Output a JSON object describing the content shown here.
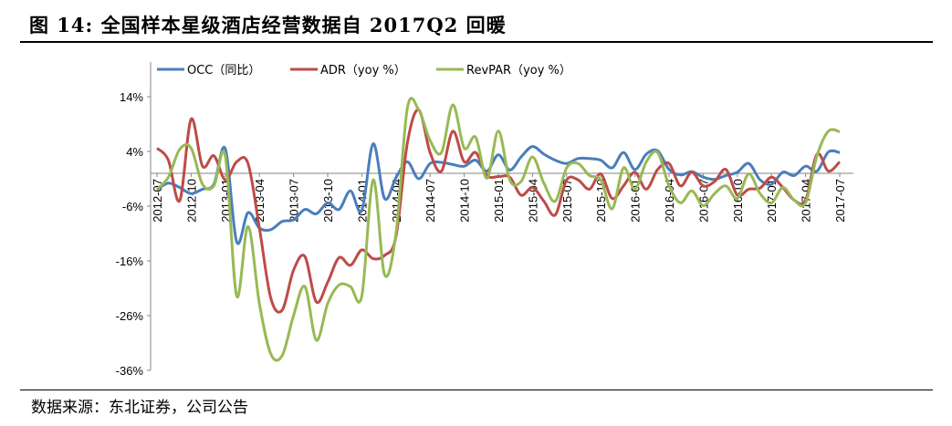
{
  "title": "图 14:  全国样本星级酒店经营数据自 2017Q2 回暖",
  "source": "数据来源：东北证券，公司公告",
  "chart_data": {
    "type": "line",
    "title": "",
    "xlabel": "",
    "ylabel": "",
    "ylim": [
      -36,
      20
    ],
    "yticks": [
      14,
      4,
      -6,
      -16,
      -26,
      -36
    ],
    "ytick_labels": [
      "14%",
      "4%",
      "-6%",
      "-16%",
      "-26%",
      "-36%"
    ],
    "x_start": "2012-07",
    "x_end": "2017-07",
    "xtick_labels": [
      "2012-07",
      "2012-10",
      "2013-01",
      "2013-04",
      "2013-07",
      "2013-10",
      "2014-01",
      "2014-04",
      "2014-07",
      "2014-10",
      "2015-01",
      "2015-04",
      "2015-07",
      "2015-10",
      "2016-01",
      "2016-04",
      "2016-07",
      "2016-10",
      "2017-01",
      "2017-04",
      "2017-07"
    ],
    "grid": false,
    "legend_position": "top",
    "series": [
      {
        "name": "OCC（同比）",
        "color": "#4a7ebb",
        "values": [
          -3,
          -1.8,
          -2.6,
          -3.7,
          -2.9,
          -2,
          4.5,
          -12.5,
          -7.2,
          -10,
          -10.3,
          -8.8,
          -8.5,
          -6.6,
          -7.4,
          -5.4,
          -6.6,
          -3.2,
          -6.8,
          5.4,
          -4.6,
          -0.8,
          2.1,
          -1,
          1.8,
          2,
          1.6,
          1.3,
          2.4,
          0.4,
          3.4,
          0.6,
          3,
          4.9,
          3.5,
          2.4,
          1.8,
          2.7,
          2.7,
          2.4,
          1,
          3.8,
          0.7,
          3.5,
          4.1,
          0.7,
          -0.3,
          0.3,
          -0.7,
          -1.1,
          -0.4,
          0.2,
          1.8,
          -1.2,
          -2,
          0.2,
          -0.4,
          1.3,
          0.4,
          3.9,
          3.8
        ]
      },
      {
        "name": "ADR（yoy %）",
        "color": "#be4b48",
        "values": [
          4.6,
          2.4,
          -5,
          9.9,
          1.3,
          3.2,
          -1.2,
          2.1,
          1.8,
          -10,
          -22.8,
          -25,
          -17.7,
          -15.2,
          -23.5,
          -19.9,
          -15.4,
          -16.8,
          -14,
          -15.6,
          -15,
          -11.6,
          5.5,
          11.6,
          3.8,
          0.4,
          7.7,
          2.1,
          3.8,
          -0.4,
          -0.6,
          -0.7,
          -4,
          -2.6,
          -5.1,
          -7.6,
          -1.2,
          -1.2,
          -2.9,
          -0.1,
          -4.6,
          -2.3,
          0.2,
          -2.9,
          0.7,
          1.8,
          -2.3,
          0.2,
          -2.3,
          -1.5,
          0.7,
          -4,
          -2.9,
          -2.7,
          -0.7,
          -2.6,
          -4.9,
          -4.9,
          3.5,
          0.4,
          2.1
        ]
      },
      {
        "name": "RevPAR（yoy %）",
        "color": "#98b954",
        "values": [
          -2.9,
          -0.7,
          4.4,
          4.6,
          -2,
          -2.3,
          3.2,
          -22.4,
          -9.7,
          -23.8,
          -33,
          -33.3,
          -26,
          -20.7,
          -30.5,
          -23.8,
          -20.4,
          -20.7,
          -22.4,
          -1.2,
          -18.5,
          -11,
          11.9,
          11.6,
          6,
          3.8,
          12.5,
          4.6,
          6.6,
          -0.9,
          7.7,
          -1.2,
          -1.5,
          3,
          -1.8,
          -5.1,
          1,
          1.8,
          -0.4,
          -1.2,
          -6.5,
          1,
          -2.9,
          2.1,
          3.8,
          -2.3,
          -5.4,
          -3.2,
          -5.9,
          -3.7,
          -2.3,
          -4.6,
          -0.1,
          -3.7,
          -5.4,
          -2.6,
          -4.9,
          -5.4,
          3.2,
          7.7,
          7.6
        ]
      }
    ]
  }
}
